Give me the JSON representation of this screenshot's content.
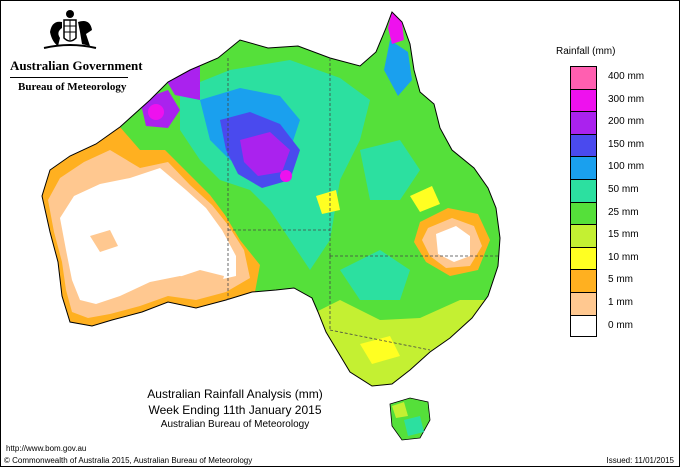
{
  "header": {
    "government": "Australian Government",
    "bureau": "Bureau of Meteorology"
  },
  "legend": {
    "title": "Rainfall (mm)",
    "items": [
      {
        "label": "400 mm",
        "color": "#ff5fb0"
      },
      {
        "label": "300 mm",
        "color": "#ee11ee"
      },
      {
        "label": "200 mm",
        "color": "#aa22ee"
      },
      {
        "label": "150 mm",
        "color": "#4a4aee"
      },
      {
        "label": "100 mm",
        "color": "#1aa0ee"
      },
      {
        "label": "50 mm",
        "color": "#2ce0a0"
      },
      {
        "label": "25 mm",
        "color": "#55e03a"
      },
      {
        "label": "15 mm",
        "color": "#c4f032"
      },
      {
        "label": "10 mm",
        "color": "#ffff22"
      },
      {
        "label": "5 mm",
        "color": "#ffb020"
      },
      {
        "label": "1 mm",
        "color": "#ffc890"
      },
      {
        "label": "0 mm",
        "color": "#ffffff"
      }
    ]
  },
  "caption": {
    "title": "Australian Rainfall Analysis (mm)",
    "subtitle": "Week Ending 11th January 2015",
    "org": "Australian Bureau of Meteorology"
  },
  "footer": {
    "url": "http://www.bom.gov.au",
    "copyright": "© Commonwealth of Australia 2015, Australian Bureau of Meteorology",
    "issued": "Issued: 11/01/2015"
  }
}
